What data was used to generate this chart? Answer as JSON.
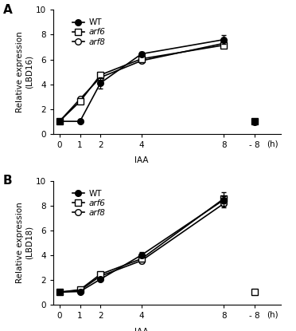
{
  "panel_A": {
    "title": "A",
    "ylabel": "Relative expression\n(LBD16)",
    "xlabel": "IAA",
    "x_main": [
      0,
      1,
      2,
      4,
      8
    ],
    "x_neg": 9.5,
    "ylim": [
      0,
      10
    ],
    "yticks": [
      0,
      2,
      4,
      6,
      8,
      10
    ],
    "WT": {
      "y": [
        1.0,
        1.0,
        4.1,
        6.45,
        7.6
      ],
      "yerr": [
        0.05,
        0.08,
        0.45,
        0.18,
        0.35
      ],
      "y_neg": 1.0,
      "yerr_neg": 0.15
    },
    "arf6": {
      "y": [
        1.0,
        2.6,
        4.75,
        6.05,
        7.15
      ],
      "yerr": [
        0.05,
        0.08,
        0.2,
        0.22,
        0.2
      ],
      "y_neg": 1.0,
      "yerr_neg": 0.1
    },
    "arf8": {
      "y": [
        1.0,
        2.8,
        4.55,
        5.9,
        7.3
      ],
      "yerr": [
        0.05,
        0.1,
        0.15,
        0.2,
        0.18
      ],
      "y_neg": 0.95,
      "yerr_neg": 0.1
    }
  },
  "panel_B": {
    "title": "B",
    "ylabel": "Relative expression\n(LBD18)",
    "xlabel": "IAA",
    "x_main": [
      0,
      1,
      2,
      4,
      8
    ],
    "x_neg": 9.5,
    "ylim": [
      0,
      10
    ],
    "yticks": [
      0,
      2,
      4,
      6,
      8,
      10
    ],
    "WT": {
      "y": [
        1.0,
        1.05,
        2.05,
        4.0,
        8.45
      ],
      "yerr": [
        0.05,
        0.08,
        0.1,
        0.22,
        0.28
      ],
      "y_neg": null,
      "yerr_neg": null
    },
    "arf6": {
      "y": [
        1.0,
        1.2,
        2.45,
        3.7,
        8.55
      ],
      "yerr": [
        0.05,
        0.08,
        0.15,
        0.25,
        0.55
      ],
      "y_neg": 1.05,
      "yerr_neg": 0.08
    },
    "arf8": {
      "y": [
        1.0,
        1.15,
        2.3,
        3.55,
        8.15
      ],
      "yerr": [
        0.05,
        0.08,
        0.12,
        0.2,
        0.3
      ],
      "y_neg": null,
      "yerr_neg": null
    }
  },
  "x_tick_labels": [
    "0",
    "1",
    "2",
    "4",
    "8",
    "- 8"
  ],
  "x_tick_pos_main": [
    0,
    1,
    2,
    4,
    8
  ],
  "x_tick_pos_neg": 9.5,
  "xlim": [
    -0.3,
    10.8
  ],
  "legend": {
    "WT": {
      "marker": "o",
      "fillstyle": "full",
      "color": "black"
    },
    "arf6": {
      "marker": "s",
      "fillstyle": "none",
      "color": "black"
    },
    "arf8": {
      "marker": "o",
      "fillstyle": "none",
      "color": "black"
    }
  },
  "h_label": "(h)",
  "linewidth": 1.2,
  "markersize": 5.5,
  "capsize": 2.5,
  "elinewidth": 0.9
}
